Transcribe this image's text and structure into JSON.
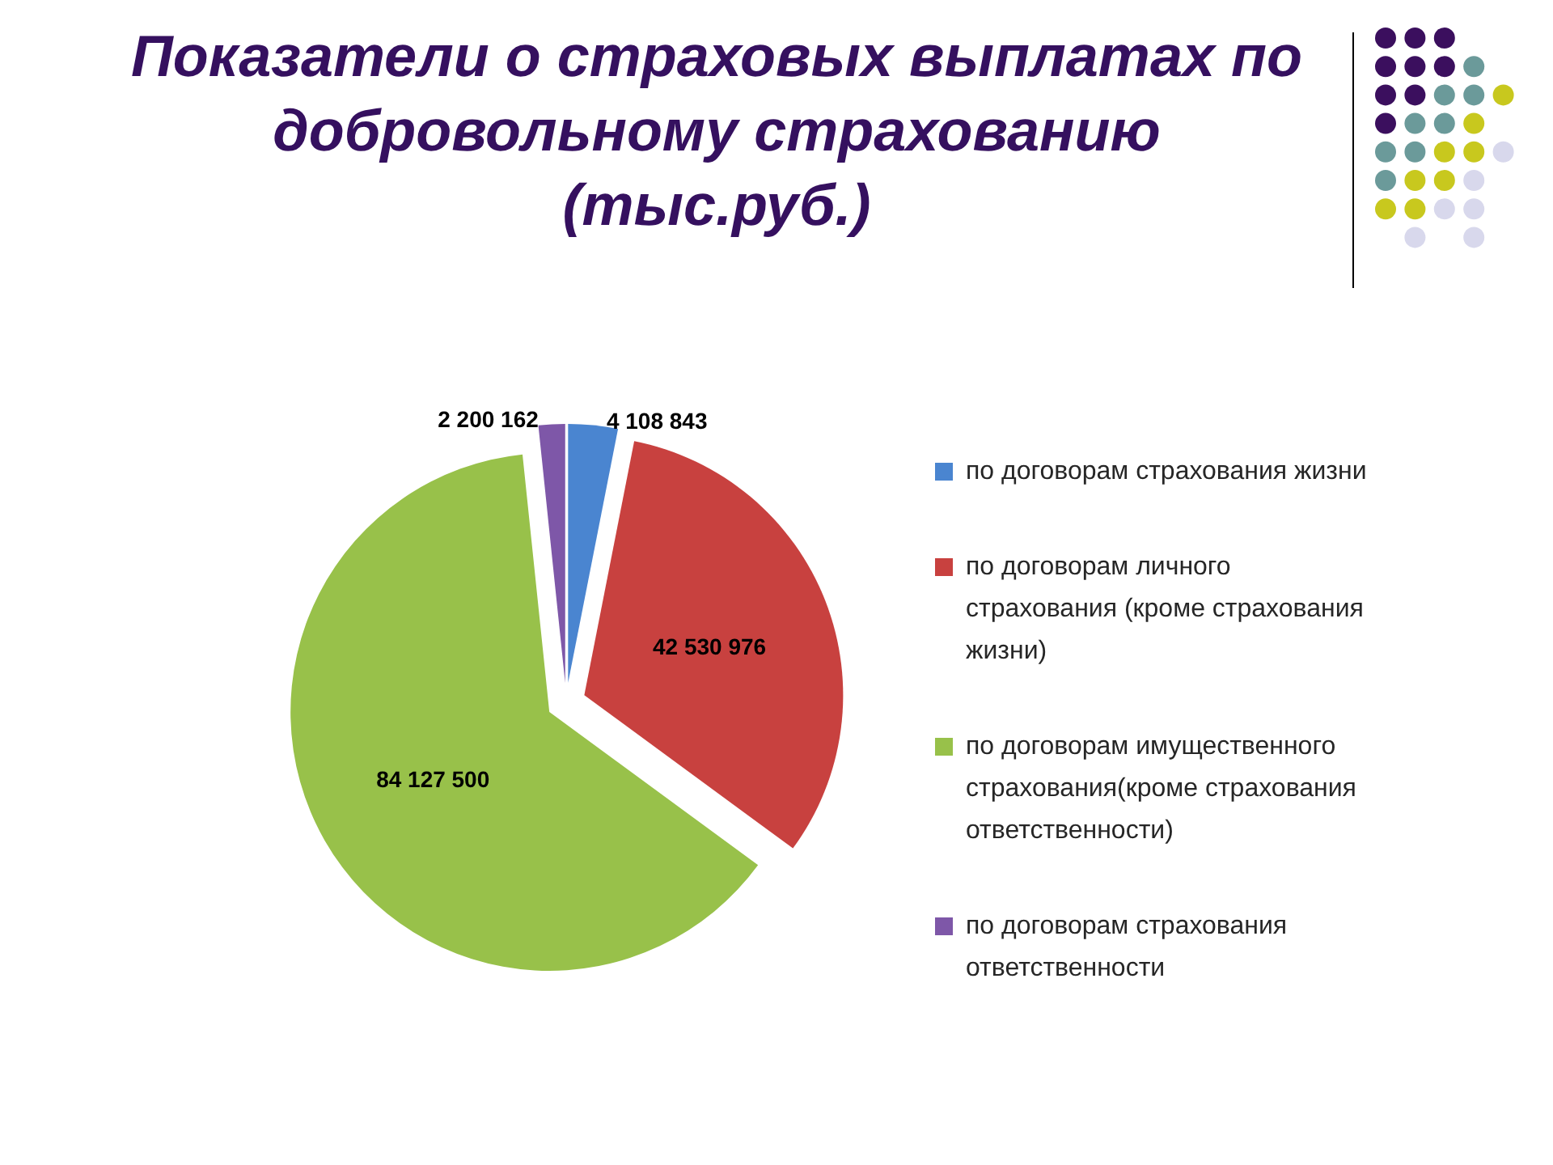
{
  "chart_data": {
    "type": "pie",
    "title": "Показатели о страховых выплатах по добровольному страхованию",
    "subtitle": "(тыс.руб.)",
    "categories": [
      "по договорам страхования жизни",
      "по договорам личного страхования (кроме страхования жизни)",
      "по договорам имущественного страхования(кроме страхования ответственности)",
      "по договорам страхования ответственности"
    ],
    "values": [
      4108843,
      42530976,
      84127500,
      2200162
    ],
    "colors": [
      "#4a85d0",
      "#c8413f",
      "#98c14a",
      "#7e57a8"
    ],
    "value_labels": [
      "4 108 843",
      "42 530 976",
      "84 127 500",
      "2 200 162"
    ],
    "legend": "right"
  }
}
